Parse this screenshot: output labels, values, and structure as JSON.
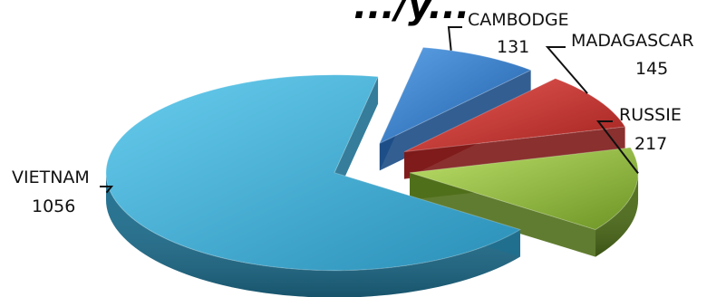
{
  "chart_data": {
    "type": "pie",
    "title": "",
    "legend": "none",
    "grid": false,
    "slices": [
      {
        "label": "CAMBODGE",
        "value": 131,
        "color": "#2a6cb8"
      },
      {
        "label": "MADAGASCAR",
        "value": 145,
        "color": "#c0342f"
      },
      {
        "label": "RUSSIE",
        "value": 217,
        "color": "#8cb33b"
      },
      {
        "label": "VIETNAM",
        "value": 1056,
        "color": "#3aa6cc"
      }
    ]
  }
}
